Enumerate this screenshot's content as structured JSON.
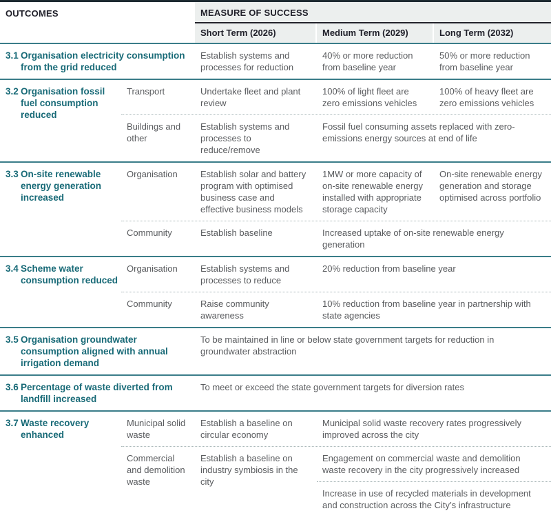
{
  "colors": {
    "accent_teal": "#186a77",
    "divider_teal": "#3a7d89",
    "header_bg": "#ecefee",
    "header_text": "#20202a",
    "body_text": "#595b5e"
  },
  "header": {
    "outcomes_label": "OUTCOMES",
    "measure_label": "MEASURE OF SUCCESS",
    "terms": [
      "Short Term (2026)",
      "Medium Term (2029)",
      "Long Term (2032)"
    ]
  },
  "sections": [
    {
      "num": "3.1",
      "title": "Organisation electricity consumption from the grid reduced",
      "short": "Establish systems and processes for reduction",
      "medium": "40% or more reduction from baseline year",
      "long": "50% or more reduction from baseline year"
    },
    {
      "num": "3.2",
      "title": "Organisation fossil fuel consumption reduced",
      "subrows": [
        {
          "category": "Transport",
          "short": "Undertake fleet and plant review",
          "medium": "100% of light fleet are zero emissions vehicles",
          "long": "100% of heavy fleet are zero emissions vehicles"
        },
        {
          "category": "Buildings and other",
          "short": "Establish systems and processes to reduce/remove",
          "medium_long": "Fossil fuel consuming assets replaced with zero-emissions energy sources at end of life"
        }
      ]
    },
    {
      "num": "3.3",
      "title": "On-site renewable energy generation increased",
      "subrows": [
        {
          "category": "Organisation",
          "short": "Establish solar and battery program with optimised business case and effective business models",
          "medium": "1MW or more capacity of on-site renewable energy installed with appropriate storage capacity",
          "long": "On-site renewable energy generation and storage optimised across portfolio"
        },
        {
          "category": "Community",
          "short": "Establish baseline",
          "medium_long": "Increased uptake of on-site renewable energy generation"
        }
      ]
    },
    {
      "num": "3.4",
      "title": "Scheme water consumption reduced",
      "subrows": [
        {
          "category": "Organisation",
          "short": "Establish systems and processes to reduce",
          "medium_long": "20% reduction from baseline year"
        },
        {
          "category": "Community",
          "short": "Raise community awareness",
          "medium_long": "10% reduction from baseline year in partnership with state agencies"
        }
      ]
    },
    {
      "num": "3.5",
      "title": "Organisation groundwater consumption aligned with annual irrigation demand",
      "all": "To be maintained in line or below state government targets for reduction in groundwater abstraction"
    },
    {
      "num": "3.6",
      "title": "Percentage of waste diverted from landfill increased",
      "all": "To meet or exceed the state government targets for diversion rates"
    },
    {
      "num": "3.7",
      "title": "Waste recovery enhanced",
      "subrows": [
        {
          "category": "Municipal solid waste",
          "short": "Establish a baseline on circular economy",
          "medium_long": "Municipal solid waste recovery rates progressively improved across the city"
        },
        {
          "category": "Commercial and demolition waste",
          "short": "Establish a baseline on industry symbiosis in the city",
          "medium_long_stack": [
            "Engagement on commercial waste and demolition waste recovery in the city progressively increased",
            "Increase in use of recycled materials in development and construction across the City’s infrastructure"
          ]
        }
      ]
    }
  ]
}
